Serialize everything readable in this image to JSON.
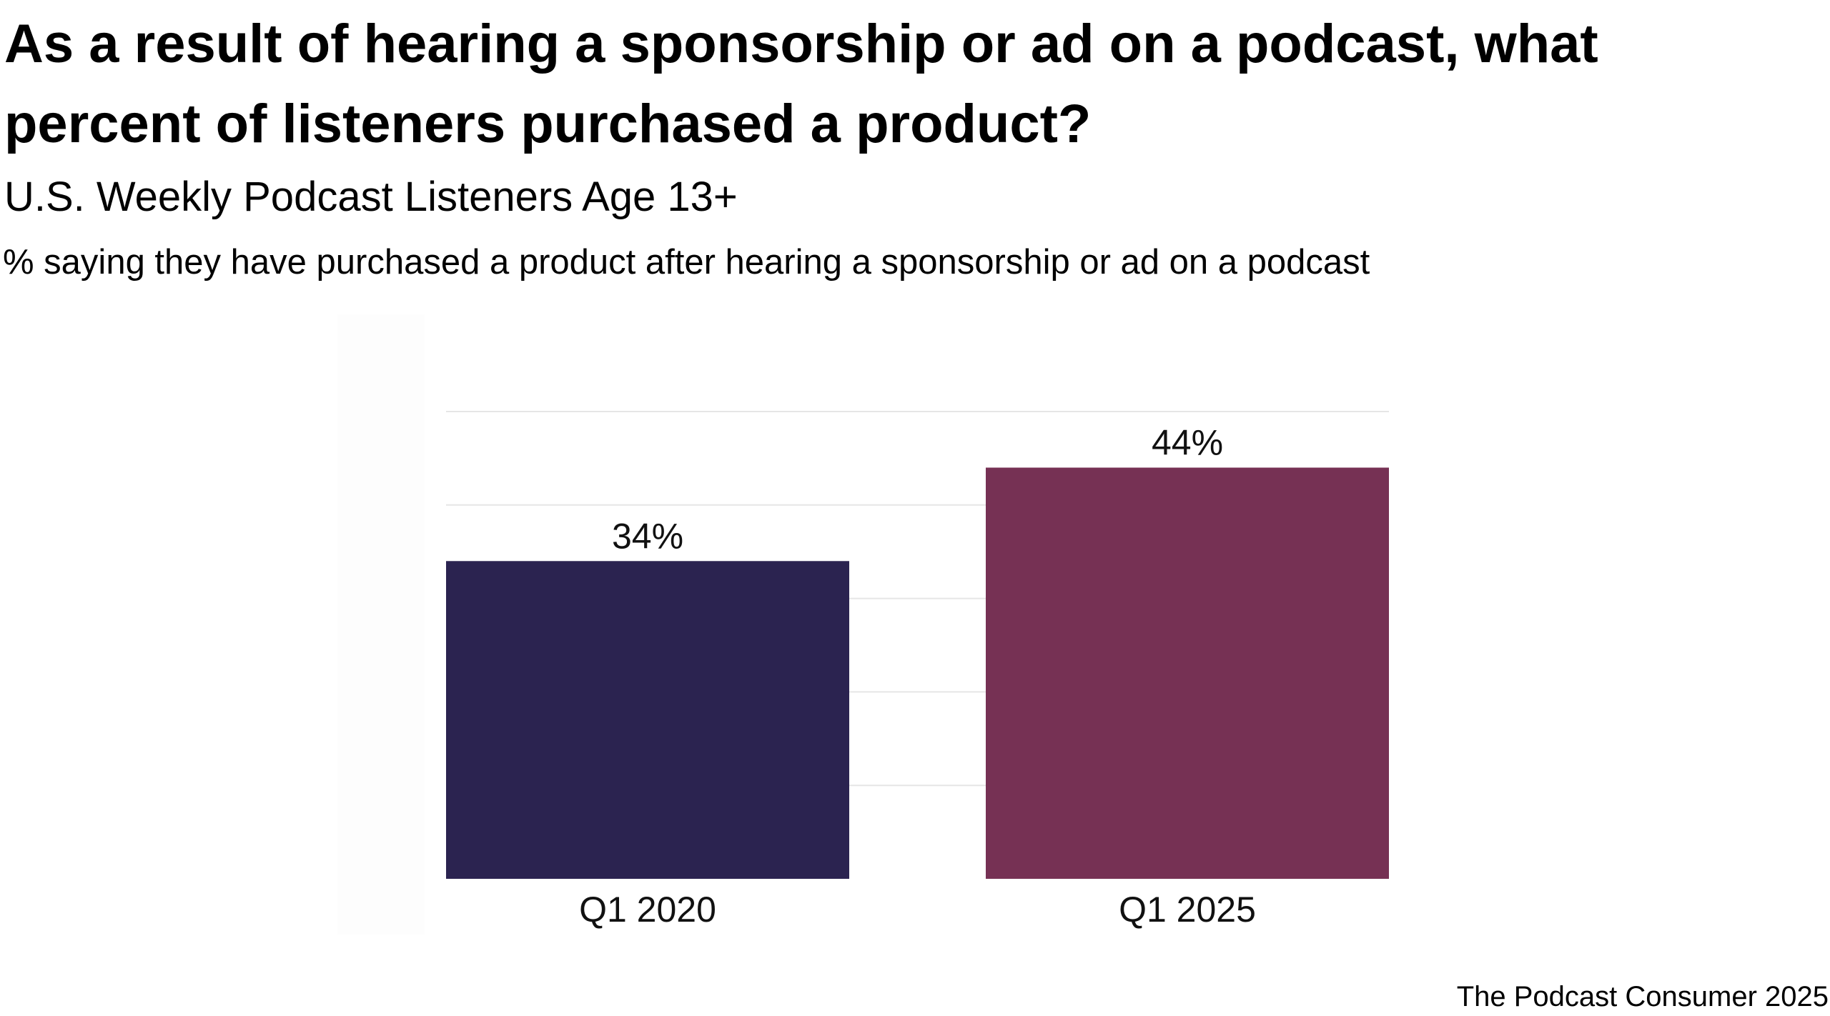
{
  "header": {
    "title": "As a result of hearing a sponsorship or ad on a podcast, what percent of listeners purchased a product?",
    "subtitle": "U.S. Weekly Podcast Listeners Age 13+",
    "measure": "% saying they have purchased a product after hearing a sponsorship or ad on a podcast"
  },
  "footer": {
    "source": "The Podcast Consumer 2025"
  },
  "chart_data": {
    "type": "bar",
    "title": "As a result of hearing a sponsorship or ad on a podcast, what percent of listeners purchased a product?",
    "subtitle": "U.S. Weekly Podcast Listeners Age 13+",
    "ylabel": "% saying they have purchased a product after hearing a sponsorship or ad on a podcast",
    "xlabel": "",
    "categories": [
      "Q1 2020",
      "Q1 2025"
    ],
    "values": [
      34,
      44
    ],
    "value_labels": [
      "34%",
      "44%"
    ],
    "colors": [
      "#2b2350",
      "#763154"
    ],
    "ylim": [
      0,
      50
    ],
    "gridlines": [
      10,
      20,
      30,
      40,
      50
    ],
    "grid": true,
    "legend": "none"
  }
}
